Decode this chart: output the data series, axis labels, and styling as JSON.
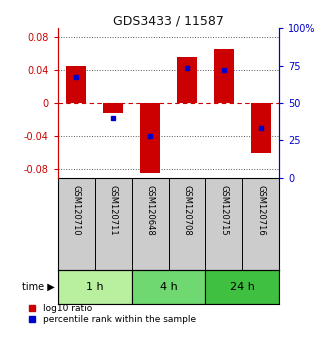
{
  "title": "GDS3433 / 11587",
  "samples": [
    "GSM120710",
    "GSM120711",
    "GSM120648",
    "GSM120708",
    "GSM120715",
    "GSM120716"
  ],
  "log10_ratio": [
    0.044,
    -0.012,
    -0.085,
    0.055,
    0.065,
    -0.06
  ],
  "percentile_rank": [
    0.031,
    -0.018,
    -0.04,
    0.042,
    0.04,
    -0.03
  ],
  "groups": [
    {
      "label": "1 h",
      "indices": [
        0,
        1
      ],
      "color": "#b8f0a0"
    },
    {
      "label": "4 h",
      "indices": [
        2,
        3
      ],
      "color": "#70d870"
    },
    {
      "label": "24 h",
      "indices": [
        4,
        5
      ],
      "color": "#40c040"
    }
  ],
  "ylim": [
    -0.09,
    0.09
  ],
  "yticks_left": [
    -0.08,
    -0.04,
    0,
    0.04,
    0.08
  ],
  "yticks_right": [
    0,
    25,
    50,
    75,
    100
  ],
  "bar_color": "#cc0000",
  "blue_color": "#0000cc",
  "background_color": "#ffffff",
  "bar_width": 0.55,
  "legend_red_label": "log10 ratio",
  "legend_blue_label": "percentile rank within the sample"
}
